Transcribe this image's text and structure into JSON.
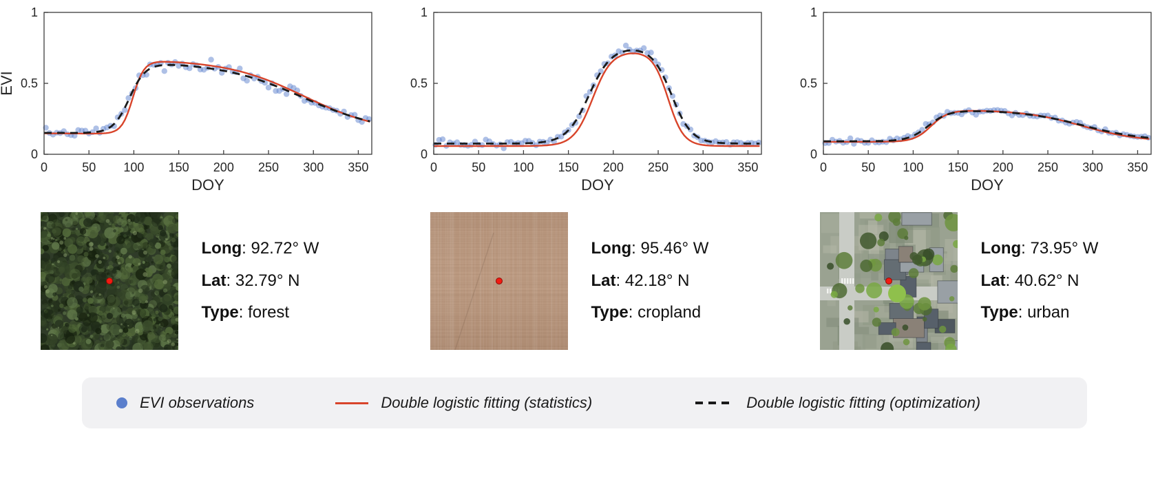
{
  "separator": ": ",
  "panels": [
    {
      "name": "forest",
      "info": {
        "long_label": "Long",
        "long_value": "92.72° W",
        "lat_label": "Lat",
        "lat_value": "32.79° N",
        "type_label": "Type",
        "type_value": "forest"
      }
    },
    {
      "name": "cropland",
      "info": {
        "long_label": "Long",
        "long_value": "95.46° W",
        "lat_label": "Lat",
        "lat_value": "42.18° N",
        "type_label": "Type",
        "type_value": "cropland"
      }
    },
    {
      "name": "urban",
      "info": {
        "long_label": "Long",
        "long_value": "73.95° W",
        "lat_label": "Lat",
        "lat_value": "40.62° N",
        "type_label": "Type",
        "type_value": "urban"
      }
    }
  ],
  "legend": {
    "items": [
      {
        "marker": "dot",
        "color": "#5b7fcc",
        "label": "EVI observations"
      },
      {
        "marker": "solid-line",
        "color": "#d8442a",
        "label": "Double logistic fitting (statistics)"
      },
      {
        "marker": "dashed-line",
        "color": "#1a1a1a",
        "label": "Double logistic fitting (optimization)"
      }
    ]
  },
  "chart_data": [
    {
      "type": "scatter",
      "site": "forest",
      "xlabel": "DOY",
      "ylabel": "EVI",
      "xlim": [
        0,
        365
      ],
      "ylim": [
        0,
        1
      ],
      "xticks": [
        0,
        50,
        100,
        150,
        200,
        250,
        300,
        350
      ],
      "yticks": [
        0,
        0.5,
        1
      ],
      "box": true,
      "grid": false,
      "observations": {
        "label": "EVI observations",
        "color": "#6487d0",
        "t_start": 2,
        "t_end": 364,
        "t_step": 4,
        "noise_sd": 0.013,
        "noise_boost_threshold": 0.4,
        "noise_boost_factor": 1.6,
        "seed": 7,
        "summary": "EVI ~0.15 until DOY~80, green-up to ~0.63 by DOY~120, plateau, gradual senescence to ~0.22 at DOY 365"
      },
      "fits": [
        {
          "label": "Double logistic fitting (statistics)",
          "line": "solid",
          "color": "#d8442a",
          "params": {
            "base": 0.148,
            "amp": 0.52,
            "sos": 99,
            "k1": 0.16,
            "eos": 290,
            "k2": 0.023
          }
        },
        {
          "label": "Double logistic fitting (optimization)",
          "line": "dashed",
          "color": "#1a1a1a",
          "params": {
            "base": 0.152,
            "amp": 0.5,
            "sos": 95,
            "k1": 0.11,
            "eos": 288,
            "k2": 0.022
          }
        }
      ]
    },
    {
      "type": "scatter",
      "site": "cropland",
      "xlabel": "DOY",
      "ylabel": "",
      "xlim": [
        0,
        365
      ],
      "ylim": [
        0,
        1
      ],
      "xticks": [
        0,
        50,
        100,
        150,
        200,
        250,
        300,
        350
      ],
      "yticks": [
        0,
        0.5,
        1
      ],
      "box": true,
      "grid": false,
      "observations": {
        "label": "EVI observations",
        "color": "#6487d0",
        "t_start": 2,
        "t_end": 364,
        "t_step": 4,
        "noise_sd": 0.012,
        "noise_boost_threshold": 0.3,
        "noise_boost_factor": 1.5,
        "seed": 13,
        "summary": "EVI ~0.08 baseline, rapid green-up DOY~160-200, peak ~0.75 near DOY 210-230, decline by DOY~280 back to ~0.08"
      },
      "fits": [
        {
          "label": "Double logistic fitting (statistics)",
          "line": "solid",
          "color": "#d8442a",
          "params": {
            "base": 0.058,
            "amp": 0.67,
            "sos": 177,
            "k1": 0.095,
            "eos": 261,
            "k2": 0.115
          }
        },
        {
          "label": "Double logistic fitting (optimization)",
          "line": "dashed",
          "color": "#1a1a1a",
          "params": {
            "base": 0.075,
            "amp": 0.685,
            "sos": 173,
            "k1": 0.08,
            "eos": 265,
            "k2": 0.09
          }
        }
      ]
    },
    {
      "type": "scatter",
      "site": "urban",
      "xlabel": "DOY",
      "ylabel": "",
      "xlim": [
        0,
        365
      ],
      "ylim": [
        0,
        1
      ],
      "xticks": [
        0,
        50,
        100,
        150,
        200,
        250,
        300,
        350
      ],
      "yticks": [
        0,
        0.5,
        1
      ],
      "box": true,
      "grid": false,
      "observations": {
        "label": "EVI observations",
        "color": "#6487d0",
        "t_start": 2,
        "t_end": 364,
        "t_step": 4,
        "noise_sd": 0.011,
        "noise_boost_threshold": 0.5,
        "noise_boost_factor": 1.0,
        "seed": 21,
        "summary": "EVI ~0.09 baseline, modest green-up DOY~100-130, plateau ~0.31, slow decline to ~0.11 at DOY 365"
      },
      "fits": [
        {
          "label": "Double logistic fitting (statistics)",
          "line": "solid",
          "color": "#d8442a",
          "params": {
            "base": 0.088,
            "amp": 0.225,
            "sos": 120,
            "k1": 0.105,
            "eos": 288,
            "k2": 0.031
          }
        },
        {
          "label": "Double logistic fitting (optimization)",
          "line": "dashed",
          "color": "#1a1a1a",
          "params": {
            "base": 0.092,
            "amp": 0.22,
            "sos": 117,
            "k1": 0.09,
            "eos": 290,
            "k2": 0.029
          }
        }
      ]
    }
  ]
}
